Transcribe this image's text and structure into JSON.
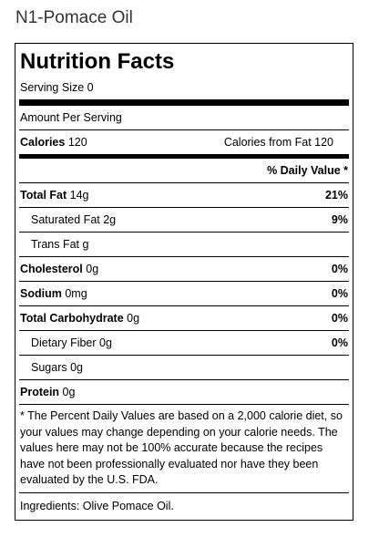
{
  "page": {
    "title": "N1-Pomace Oil"
  },
  "label": {
    "title": "Nutrition Facts",
    "serving_size": "Serving Size 0",
    "amount_per_serving": "Amount Per Serving",
    "calories_label": "Calories",
    "calories_value": "120",
    "calories_from_fat": "Calories from Fat 120",
    "daily_value_header": "% Daily Value *",
    "nutrients": [
      {
        "name": "Total Fat",
        "amount": "14g",
        "dv": "21%"
      },
      {
        "name": "Saturated Fat",
        "amount": "2g",
        "dv": "9%"
      },
      {
        "name": "Trans Fat",
        "amount": "g",
        "dv": ""
      },
      {
        "name": "Cholesterol",
        "amount": "0g",
        "dv": "0%"
      },
      {
        "name": "Sodium",
        "amount": "0mg",
        "dv": "0%"
      },
      {
        "name": "Total Carbohydrate",
        "amount": "0g",
        "dv": "0%"
      },
      {
        "name": "Dietary Fiber",
        "amount": "0g",
        "dv": "0%"
      },
      {
        "name": "Sugars",
        "amount": "0g",
        "dv": ""
      },
      {
        "name": "Protein",
        "amount": "0g",
        "dv": ""
      }
    ],
    "footnote": "* The Percent Daily Values are based on a 2,000 calorie diet, so your values may change depending on your calorie needs. The values here may not be 100% accurate because the recipes have not been professionally evaluated nor have they been evaluated by the U.S. FDA.",
    "ingredients": "Ingredients: Olive Pomace Oil."
  }
}
